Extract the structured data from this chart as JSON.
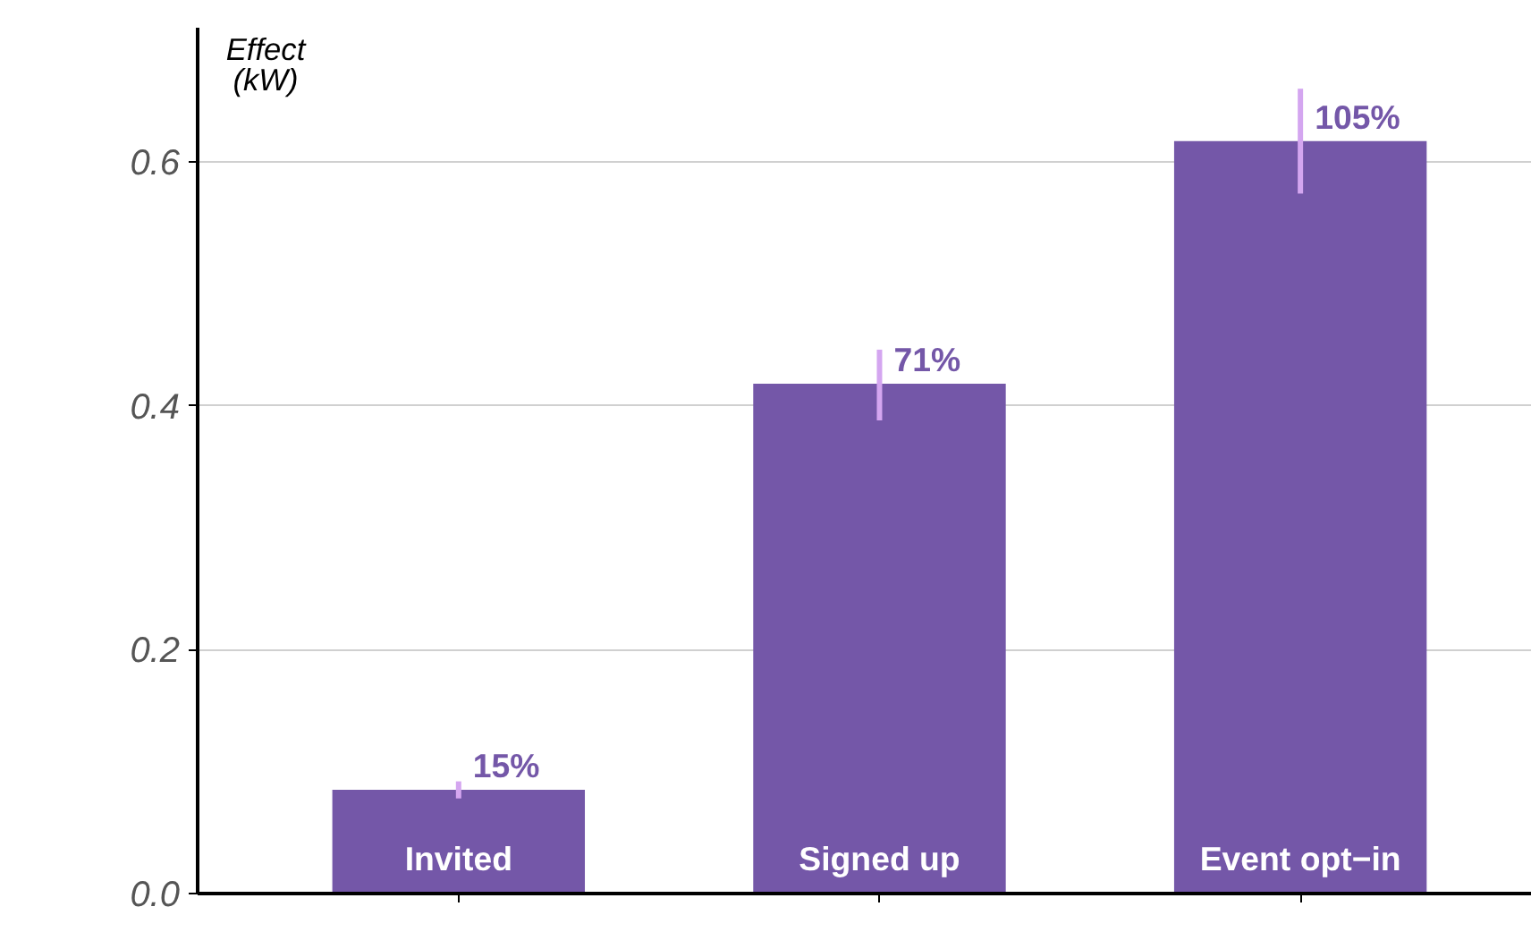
{
  "chart_data": {
    "type": "bar",
    "ylabel": "Effect\n(kW)",
    "categories": [
      "Invited",
      "Signed up",
      "Event opt−in"
    ],
    "values": [
      0.085,
      0.418,
      0.617
    ],
    "errors": [
      [
        0.078,
        0.092
      ],
      [
        0.388,
        0.446
      ],
      [
        0.574,
        0.66
      ]
    ],
    "annotations": [
      {
        "text": "15%",
        "x": "Invited",
        "y": 0.085
      },
      {
        "text": "71%",
        "x": "Signed up",
        "y": 0.418
      },
      {
        "text": "105%",
        "x": "Event opt−in",
        "y": 0.617
      }
    ],
    "color": "#7457a8",
    "ylim": [
      0,
      0.71
    ],
    "yticks": [
      {
        "value": 0,
        "label": "0.0"
      },
      0.2,
      0.4,
      0.6
    ],
    "grid": "y"
  }
}
